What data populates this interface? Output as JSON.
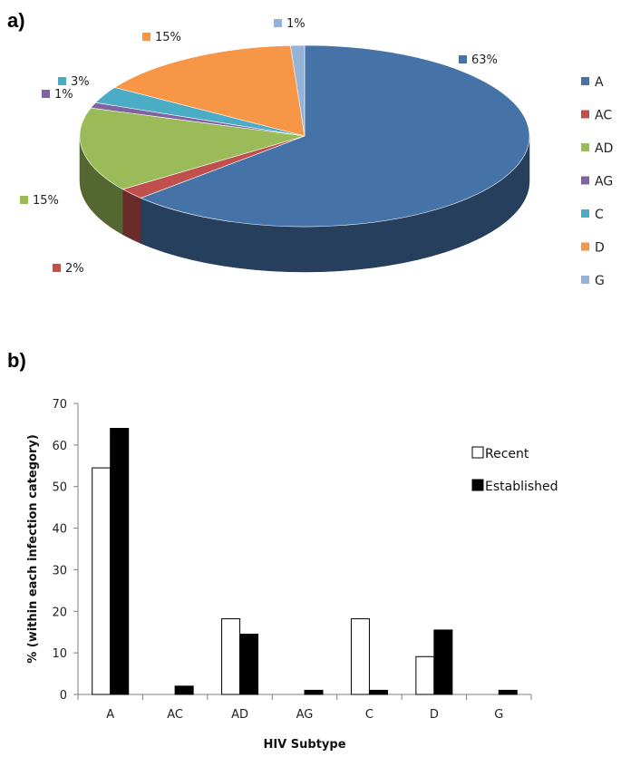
{
  "panels": {
    "a": "a)",
    "b": "b)"
  },
  "chart_data": [
    {
      "type": "pie",
      "three_d": true,
      "categories": [
        "A",
        "AC",
        "AD",
        "AG",
        "C",
        "D",
        "G"
      ],
      "values": [
        63,
        2,
        15,
        1,
        3,
        15,
        1
      ],
      "labels": [
        "63%",
        "2%",
        "15%",
        "1%",
        "3%",
        "15%",
        "1%"
      ],
      "colors": [
        "#4572A7",
        "#C0504D",
        "#9BBB59",
        "#8064A2",
        "#4BACC6",
        "#F79646",
        "#95B3D7"
      ],
      "legend": {
        "position": "right",
        "entries": [
          "A",
          "AC",
          "AD",
          "AG",
          "C",
          "D",
          "G"
        ]
      }
    },
    {
      "type": "bar",
      "categories": [
        "A",
        "AC",
        "AD",
        "AG",
        "C",
        "D",
        "G"
      ],
      "series": [
        {
          "name": "Recent",
          "values": [
            54.5,
            0,
            18.2,
            0,
            18.2,
            9.1,
            0
          ],
          "fill": "#ffffff"
        },
        {
          "name": "Established",
          "values": [
            64,
            2,
            14.5,
            1,
            1,
            15.5,
            1
          ],
          "fill": "#000000"
        }
      ],
      "xlabel": "HIV Subtype",
      "ylabel": "% (within each infection category)",
      "ylim": [
        0,
        70
      ],
      "yticks": [
        0,
        10,
        20,
        30,
        40,
        50,
        60,
        70
      ],
      "grid": false,
      "legend": {
        "position": "top-right"
      }
    }
  ]
}
